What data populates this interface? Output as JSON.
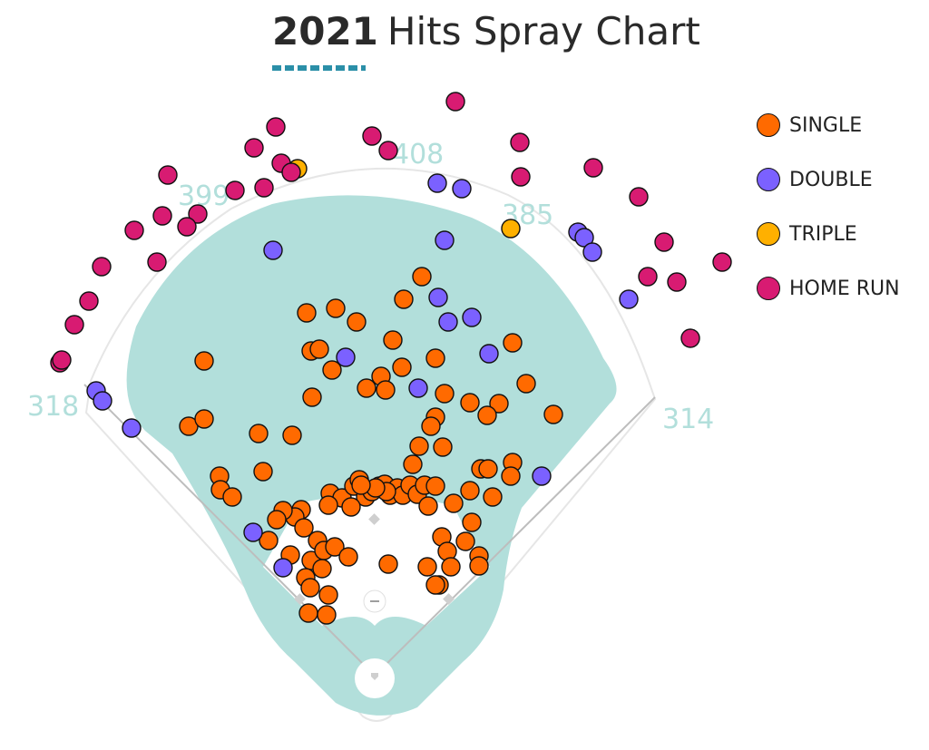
{
  "title": {
    "year": "2021",
    "rest": "Hits Spray Chart"
  },
  "colors": {
    "single": "#ff6a00",
    "double": "#7b61ff",
    "triple": "#ffb000",
    "home_run": "#d81b72",
    "field": "#b2dfdb",
    "accent": "#2b8fa8"
  },
  "legend": [
    {
      "key": "single",
      "label": "SINGLE"
    },
    {
      "key": "double",
      "label": "DOUBLE"
    },
    {
      "key": "triple",
      "label": "TRIPLE"
    },
    {
      "key": "home_run",
      "label": "HOME RUN"
    }
  ],
  "distances": {
    "lf": "318",
    "lcf": "399",
    "cf": "408",
    "rcf": "385",
    "rf": "314"
  },
  "chart_data": {
    "type": "scatter",
    "title": "2021 Hits Spray Chart",
    "series": [
      {
        "name": "SINGLE",
        "key": "single",
        "points": [
          [
            465,
            305
          ],
          [
            445,
            330
          ],
          [
            338,
            345
          ],
          [
            370,
            340
          ],
          [
            393,
            355
          ],
          [
            433,
            375
          ],
          [
            343,
            387
          ],
          [
            352,
            385
          ],
          [
            366,
            408
          ],
          [
            225,
            398
          ],
          [
            344,
            438
          ],
          [
            404,
            428
          ],
          [
            420,
            415
          ],
          [
            425,
            430
          ],
          [
            443,
            405
          ],
          [
            480,
            395
          ],
          [
            490,
            434
          ],
          [
            480,
            460
          ],
          [
            475,
            470
          ],
          [
            518,
            444
          ],
          [
            550,
            445
          ],
          [
            537,
            458
          ],
          [
            565,
            378
          ],
          [
            580,
            423
          ],
          [
            610,
            457
          ],
          [
            208,
            470
          ],
          [
            225,
            462
          ],
          [
            285,
            478
          ],
          [
            322,
            480
          ],
          [
            290,
            520
          ],
          [
            242,
            525
          ],
          [
            243,
            540
          ],
          [
            256,
            548
          ],
          [
            462,
            492
          ],
          [
            488,
            493
          ],
          [
            455,
            512
          ],
          [
            530,
            517
          ],
          [
            538,
            517
          ],
          [
            565,
            510
          ],
          [
            563,
            525
          ],
          [
            500,
            555
          ],
          [
            518,
            541
          ],
          [
            543,
            548
          ],
          [
            364,
            544
          ],
          [
            377,
            549
          ],
          [
            390,
            536
          ],
          [
            396,
            529
          ],
          [
            403,
            548
          ],
          [
            410,
            542
          ],
          [
            418,
            536
          ],
          [
            424,
            534
          ],
          [
            430,
            546
          ],
          [
            438,
            538
          ],
          [
            444,
            546
          ],
          [
            452,
            535
          ],
          [
            460,
            545
          ],
          [
            468,
            535
          ],
          [
            472,
            558
          ],
          [
            480,
            536
          ],
          [
            362,
            557
          ],
          [
            387,
            559
          ],
          [
            332,
            562
          ],
          [
            325,
            570
          ],
          [
            312,
            563
          ],
          [
            305,
            573
          ],
          [
            335,
            582
          ],
          [
            296,
            596
          ],
          [
            350,
            596
          ],
          [
            343,
            618
          ],
          [
            357,
            607
          ],
          [
            369,
            603
          ],
          [
            320,
            612
          ],
          [
            355,
            627
          ],
          [
            384,
            614
          ],
          [
            428,
            622
          ],
          [
            471,
            625
          ],
          [
            487,
            592
          ],
          [
            493,
            608
          ],
          [
            497,
            625
          ],
          [
            484,
            645
          ],
          [
            480,
            645
          ],
          [
            513,
            597
          ],
          [
            520,
            576
          ],
          [
            528,
            613
          ],
          [
            528,
            624
          ],
          [
            337,
            637
          ],
          [
            342,
            648
          ],
          [
            362,
            656
          ],
          [
            340,
            676
          ],
          [
            360,
            678
          ],
          [
            426,
            542
          ],
          [
            414,
            538
          ],
          [
            398,
            535
          ]
        ]
      },
      {
        "name": "DOUBLE",
        "key": "double",
        "points": [
          [
            301,
            276
          ],
          [
            482,
            202
          ],
          [
            509,
            208
          ],
          [
            490,
            265
          ],
          [
            637,
            256
          ],
          [
            644,
            262
          ],
          [
            653,
            278
          ],
          [
            693,
            330
          ],
          [
            483,
            328
          ],
          [
            494,
            355
          ],
          [
            520,
            350
          ],
          [
            381,
            394
          ],
          [
            539,
            390
          ],
          [
            461,
            428
          ],
          [
            106,
            431
          ],
          [
            113,
            442
          ],
          [
            145,
            472
          ],
          [
            597,
            525
          ],
          [
            279,
            587
          ],
          [
            312,
            626
          ]
        ]
      },
      {
        "name": "TRIPLE",
        "key": "triple",
        "points": [
          [
            328,
            186
          ],
          [
            563,
            252
          ]
        ]
      },
      {
        "name": "HOME RUN",
        "key": "home_run",
        "points": [
          [
            502,
            112
          ],
          [
            304,
            140
          ],
          [
            410,
            150
          ],
          [
            428,
            166
          ],
          [
            573,
            157
          ],
          [
            280,
            163
          ],
          [
            310,
            180
          ],
          [
            321,
            190
          ],
          [
            185,
            193
          ],
          [
            574,
            195
          ],
          [
            654,
            185
          ],
          [
            259,
            210
          ],
          [
            291,
            207
          ],
          [
            704,
            217
          ],
          [
            218,
            236
          ],
          [
            179,
            238
          ],
          [
            206,
            250
          ],
          [
            148,
            254
          ],
          [
            732,
            267
          ],
          [
            173,
            289
          ],
          [
            112,
            294
          ],
          [
            796,
            289
          ],
          [
            714,
            305
          ],
          [
            746,
            311
          ],
          [
            98,
            332
          ],
          [
            82,
            358
          ],
          [
            761,
            373
          ],
          [
            66,
            400
          ],
          [
            68,
            397
          ]
        ]
      }
    ],
    "legend_position": "top-right",
    "field_distances": [
      "318",
      "399",
      "408",
      "385",
      "314"
    ]
  }
}
